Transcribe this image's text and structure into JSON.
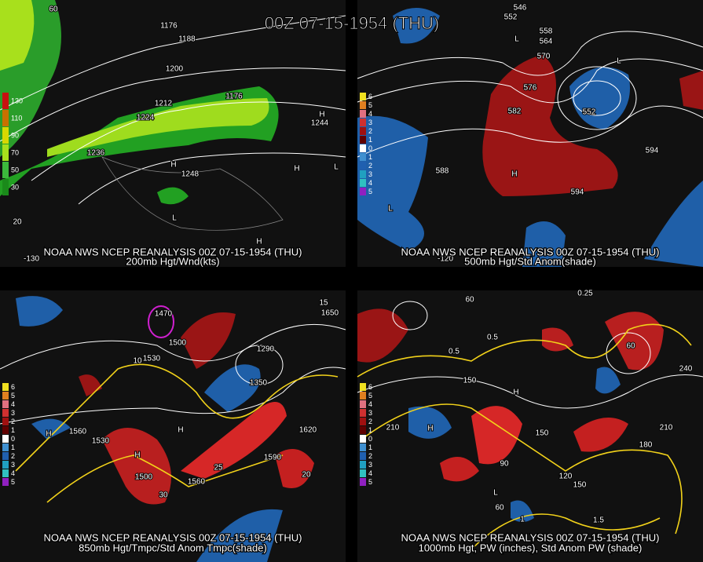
{
  "title": "00Z 07-15-1954 (THU)",
  "panels": [
    {
      "caption_line1": "NOAA NWS NCEP REANALYSIS 00Z 07-15-1954 (THU)",
      "caption_line2": "200mb Hgt/Wnd(kts)",
      "colorbar": [
        "130",
        "110",
        "90",
        "70",
        "50",
        "30"
      ],
      "labels": [
        "60",
        "1176",
        "1188",
        "1200",
        "1212",
        "1224",
        "1236",
        "1248",
        "1176",
        "1244",
        "H",
        "H",
        "H",
        "L",
        "L",
        "H",
        "20",
        "-130"
      ]
    },
    {
      "caption_line1": "NOAA NWS NCEP REANALYSIS 00Z 07-15-1954 (THU)",
      "caption_line2": "500mb Hgt/Std Anom(shade)",
      "colorbar": [
        "6",
        "5",
        "4",
        "3",
        "2",
        "1",
        "0",
        "1",
        "2",
        "3",
        "4",
        "5"
      ],
      "labels": [
        "546",
        "552",
        "558",
        "564",
        "570",
        "576",
        "582",
        "588",
        "594",
        "594",
        "H",
        "L",
        "L",
        "L",
        "552",
        "-120"
      ]
    },
    {
      "caption_line1": "NOAA NWS NCEP REANALYSIS 00Z 07-15-1954 (THU)",
      "caption_line2": "850mb Hgt/Tmpc/Std Anom Tmpc(shade)",
      "colorbar": [
        "6",
        "5",
        "4",
        "3",
        "2",
        "1",
        "0",
        "1",
        "2",
        "3",
        "4",
        "5"
      ],
      "labels": [
        "1530",
        "1500",
        "1470",
        "1560",
        "H",
        "1530",
        "H",
        "1500",
        "1560",
        "H",
        "1590",
        "1620",
        "1650",
        "1350",
        "1290",
        "10",
        "25",
        "30",
        "20",
        "15"
      ]
    },
    {
      "caption_line1": "NOAA NWS NCEP REANALYSIS 00Z 07-15-1954 (THU)",
      "caption_line2": "1000mb Hgt, PW (inches), Std Anom PW (shade)",
      "colorbar": [
        "6",
        "5",
        "4",
        "3",
        "2",
        "1",
        "0",
        "1",
        "2",
        "3",
        "4",
        "5"
      ],
      "labels": [
        "60",
        "0.5",
        "0.5",
        "150",
        "210",
        "H",
        "150",
        "H",
        "90",
        "120",
        "150",
        "180",
        "210",
        "240",
        "60",
        "0.25",
        "1.5",
        "1",
        "L",
        "60"
      ]
    }
  ]
}
